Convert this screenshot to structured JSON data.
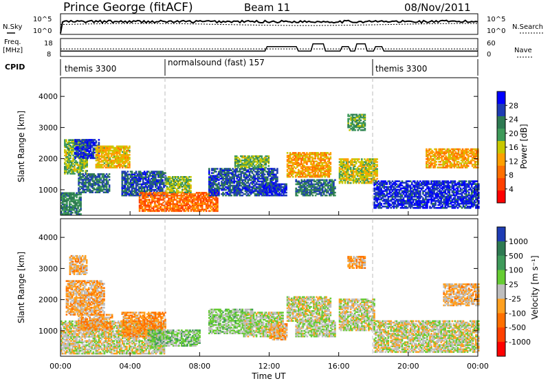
{
  "header": {
    "station": "Prince George (fitACF)",
    "beam": "Beam 11",
    "date": "08/Nov/2011"
  },
  "top_panels": {
    "nsky_label": "N.Sky",
    "nsky_ticks": [
      "10^5",
      "10^0"
    ],
    "nsearch_label": "N.Search",
    "nsearch_ticks": [
      "10^5",
      "10^0"
    ],
    "freq_label": [
      "Freq.",
      "[MHz]"
    ],
    "freq_ticks": [
      "18",
      "8"
    ],
    "nave_label": "Nave",
    "nave_ticks": [
      "60",
      "0"
    ],
    "cpid_label": "CPID",
    "cpid_segments": [
      {
        "name": "themis 3300",
        "start_hour": 0,
        "end_hour": 6
      },
      {
        "name": "normalsound (fast) 157",
        "start_hour": 6,
        "end_hour": 18
      },
      {
        "name": "themis 3300",
        "start_hour": 18,
        "end_hour": 24
      }
    ]
  },
  "colors": {
    "power_scale": [
      "#0000ff",
      "#1e3cb4",
      "#2e7a52",
      "#3e9a5a",
      "#c8c800",
      "#ffa000",
      "#ff7000",
      "#ff4000",
      "#ff0000"
    ],
    "velocity_scale": [
      "#1e3cb4",
      "#2e7a52",
      "#3e9a5a",
      "#66cc33",
      "#bebebe",
      "#ffa020",
      "#ff7000",
      "#ff4000",
      "#ff0000"
    ]
  },
  "power_bar": {
    "label": "Power [dB]",
    "ticks": [
      "28",
      "24",
      "20",
      "16",
      "12",
      "8",
      "4"
    ]
  },
  "velocity_bar": {
    "label": "Velocity [m s⁻¹]",
    "ticks": [
      "1000",
      "500",
      "100",
      "25",
      "-25",
      "-100",
      "-500",
      "-1000"
    ]
  },
  "chart_data": {
    "type": "heatmap",
    "title": "Prince George (fitACF)  Beam 11  08/Nov/2011",
    "xlabel": "Time UT",
    "ylabel": "Slant Range [km]",
    "x_ticks": [
      "00:00",
      "04:00",
      "08:00",
      "12:00",
      "16:00",
      "20:00",
      "00:00"
    ],
    "y_ticks": [
      "1000",
      "2000",
      "3000",
      "4000"
    ],
    "xlim_hours": [
      0,
      24
    ],
    "ylim_km": [
      180,
      4600
    ],
    "panels": [
      {
        "name": "Power",
        "units": "dB",
        "scale": [
          0,
          32
        ],
        "blobs": [
          {
            "t0": 0.0,
            "t1": 1.2,
            "r0": 200,
            "r1": 900,
            "value": 22
          },
          {
            "t0": 0.2,
            "t1": 1.5,
            "r0": 1500,
            "r1": 2600,
            "value": 18
          },
          {
            "t0": 0.8,
            "t1": 2.2,
            "r0": 2000,
            "r1": 2600,
            "value": 28
          },
          {
            "t0": 1.0,
            "t1": 2.8,
            "r0": 900,
            "r1": 1500,
            "value": 24
          },
          {
            "t0": 2.0,
            "t1": 4.0,
            "r0": 1700,
            "r1": 2400,
            "value": 14
          },
          {
            "t0": 3.5,
            "t1": 6.0,
            "r0": 800,
            "r1": 1600,
            "value": 26
          },
          {
            "t0": 4.5,
            "t1": 9.0,
            "r0": 300,
            "r1": 900,
            "value": 8
          },
          {
            "t0": 6.0,
            "t1": 7.5,
            "r0": 900,
            "r1": 1400,
            "value": 18
          },
          {
            "t0": 8.5,
            "t1": 12.5,
            "r0": 800,
            "r1": 1700,
            "value": 26
          },
          {
            "t0": 10.0,
            "t1": 12.0,
            "r0": 1700,
            "r1": 2100,
            "value": 18
          },
          {
            "t0": 11.5,
            "t1": 13.0,
            "r0": 800,
            "r1": 1200,
            "value": 28
          },
          {
            "t0": 13.0,
            "t1": 15.5,
            "r0": 1400,
            "r1": 2200,
            "value": 12
          },
          {
            "t0": 13.5,
            "t1": 15.8,
            "r0": 800,
            "r1": 1300,
            "value": 24
          },
          {
            "t0": 16.0,
            "t1": 18.2,
            "r0": 1200,
            "r1": 2000,
            "value": 16
          },
          {
            "t0": 16.5,
            "t1": 17.5,
            "r0": 2900,
            "r1": 3400,
            "value": 20
          },
          {
            "t0": 18.0,
            "t1": 24.0,
            "r0": 400,
            "r1": 1300,
            "value": 28
          },
          {
            "t0": 21.0,
            "t1": 24.0,
            "r0": 1700,
            "r1": 2300,
            "value": 12
          }
        ]
      },
      {
        "name": "Velocity",
        "units": "m s⁻¹",
        "scale": [
          -1000,
          1000
        ],
        "blobs": [
          {
            "t0": 0.0,
            "t1": 6.0,
            "r0": 250,
            "r1": 1300,
            "value": 0
          },
          {
            "t0": 0.3,
            "t1": 2.5,
            "r0": 1500,
            "r1": 2600,
            "value": -200
          },
          {
            "t0": 0.5,
            "t1": 1.5,
            "r0": 2800,
            "r1": 3400,
            "value": -150
          },
          {
            "t0": 1.0,
            "t1": 3.0,
            "r0": 1000,
            "r1": 1500,
            "value": -250
          },
          {
            "t0": 3.5,
            "t1": 6.0,
            "r0": 800,
            "r1": 1600,
            "value": -300
          },
          {
            "t0": 5.0,
            "t1": 8.0,
            "r0": 500,
            "r1": 1000,
            "value": 200
          },
          {
            "t0": 8.5,
            "t1": 11.0,
            "r0": 900,
            "r1": 1700,
            "value": 150
          },
          {
            "t0": 10.5,
            "t1": 12.8,
            "r0": 800,
            "r1": 1600,
            "value": 60
          },
          {
            "t0": 12.0,
            "t1": 13.0,
            "r0": 700,
            "r1": 1200,
            "value": -200
          },
          {
            "t0": 13.0,
            "t1": 15.5,
            "r0": 1300,
            "r1": 2100,
            "value": 0
          },
          {
            "t0": 13.5,
            "t1": 15.8,
            "r0": 800,
            "r1": 1300,
            "value": 80
          },
          {
            "t0": 16.0,
            "t1": 18.0,
            "r0": 1000,
            "r1": 2000,
            "value": 0
          },
          {
            "t0": 16.5,
            "t1": 17.5,
            "r0": 3000,
            "r1": 3400,
            "value": -200
          },
          {
            "t0": 18.0,
            "t1": 24.0,
            "r0": 300,
            "r1": 1300,
            "value": 0
          },
          {
            "t0": 22.0,
            "t1": 24.0,
            "r0": 1800,
            "r1": 2500,
            "value": -150
          }
        ]
      }
    ]
  }
}
